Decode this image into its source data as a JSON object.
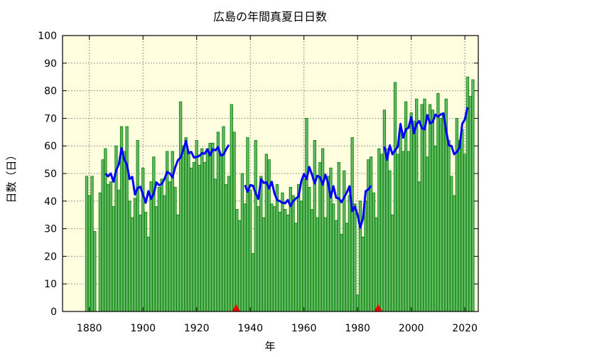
{
  "chart_data": {
    "type": "bar",
    "title": "広島の年間真夏日日数",
    "xlabel": "年",
    "ylabel": "日数（日）",
    "xlim": [
      1870,
      2025
    ],
    "ylim": [
      0,
      100
    ],
    "x_ticks": [
      1880,
      1900,
      1920,
      1940,
      1960,
      1980,
      2000,
      2020
    ],
    "y_ticks": [
      0,
      10,
      20,
      30,
      40,
      50,
      60,
      70,
      80,
      90,
      100
    ],
    "grid": true,
    "colors": {
      "plot_background": "#ffffe0",
      "bar_fill": "#66bb66",
      "bar_edge": "#0e820e",
      "line": "#0000ff",
      "marker": "#ee0000"
    },
    "years": [
      1879,
      1880,
      1881,
      1882,
      1884,
      1885,
      1886,
      1887,
      1888,
      1889,
      1890,
      1891,
      1892,
      1893,
      1894,
      1895,
      1896,
      1897,
      1898,
      1899,
      1900,
      1901,
      1902,
      1903,
      1904,
      1905,
      1906,
      1907,
      1908,
      1909,
      1910,
      1911,
      1912,
      1913,
      1914,
      1915,
      1916,
      1917,
      1918,
      1919,
      1920,
      1921,
      1922,
      1923,
      1924,
      1925,
      1926,
      1927,
      1928,
      1929,
      1930,
      1931,
      1932,
      1933,
      1934,
      1935,
      1936,
      1937,
      1938,
      1939,
      1940,
      1941,
      1942,
      1943,
      1944,
      1945,
      1946,
      1947,
      1948,
      1949,
      1950,
      1951,
      1952,
      1953,
      1954,
      1955,
      1956,
      1957,
      1958,
      1959,
      1960,
      1961,
      1962,
      1963,
      1964,
      1965,
      1966,
      1967,
      1968,
      1969,
      1970,
      1971,
      1972,
      1973,
      1974,
      1975,
      1976,
      1977,
      1978,
      1979,
      1980,
      1981,
      1982,
      1983,
      1984,
      1985,
      1986,
      1987,
      1988,
      1989,
      1990,
      1991,
      1992,
      1993,
      1994,
      1995,
      1996,
      1997,
      1998,
      1999,
      2000,
      2001,
      2002,
      2003,
      2004,
      2005,
      2006,
      2007,
      2008,
      2009,
      2010,
      2011,
      2012,
      2013,
      2014,
      2015,
      2016,
      2017,
      2018,
      2019,
      2020,
      2021,
      2022,
      2023
    ],
    "values": [
      49,
      42,
      49,
      29,
      43,
      55,
      59,
      46,
      47,
      38,
      60,
      44,
      67,
      58,
      67,
      40,
      34,
      41,
      62,
      35,
      52,
      36,
      27,
      47,
      56,
      38,
      45,
      48,
      42,
      58,
      47,
      58,
      45,
      35,
      76,
      60,
      63,
      58,
      52,
      54,
      62,
      53,
      59,
      54,
      59,
      61,
      61,
      48,
      65,
      57,
      67,
      46,
      49,
      75,
      65,
      37,
      33,
      50,
      39,
      63,
      44,
      21,
      62,
      38,
      49,
      34,
      57,
      55,
      39,
      38,
      46,
      36,
      43,
      37,
      35,
      45,
      42,
      32,
      46,
      40,
      48,
      70,
      45,
      37,
      62,
      34,
      54,
      59,
      34,
      49,
      52,
      39,
      33,
      54,
      28,
      51,
      32,
      42,
      63,
      39,
      6,
      40,
      27,
      40,
      55,
      56,
      43,
      34,
      59,
      57,
      73,
      59,
      51,
      35,
      83,
      57,
      66,
      58,
      76,
      58,
      72,
      69,
      77,
      47,
      75,
      77,
      56,
      75,
      73,
      60,
      79,
      70,
      71,
      77,
      62,
      49,
      42,
      70,
      62,
      66,
      57,
      85,
      78,
      84
    ],
    "moving_average": {
      "window": 5,
      "segments": [
        [
          1884,
          1934
        ],
        [
          1936,
          1987
        ],
        [
          1988,
          2023
        ]
      ]
    },
    "markers": [
      1934.7,
      1987.7
    ]
  }
}
